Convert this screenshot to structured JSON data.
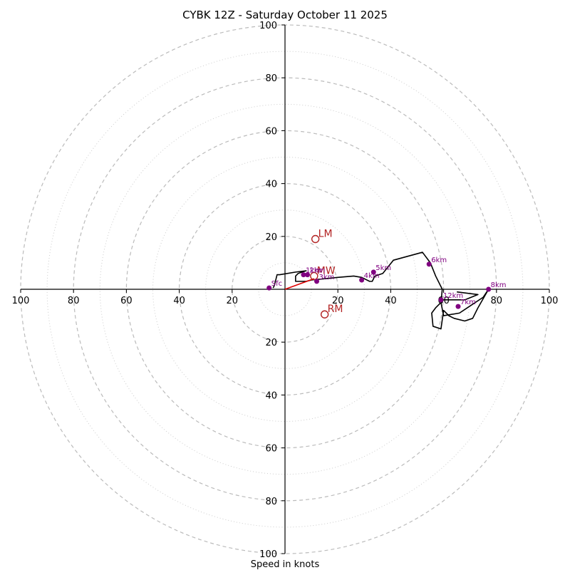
{
  "chart_data": {
    "type": "hodograph",
    "title": "CYBK 12Z - Saturday October 11 2025",
    "xlabel": "Speed in knots",
    "max_speed": 100,
    "ring_major": [
      20,
      40,
      60,
      80,
      100
    ],
    "ring_minor": [
      10,
      30,
      50,
      70,
      90
    ],
    "tick_labels": [
      "20",
      "40",
      "60",
      "80",
      "100"
    ],
    "trace_u": [
      -4.5,
      -4,
      -3,
      -2,
      4,
      8,
      5,
      4,
      4,
      8,
      10,
      15,
      20,
      26,
      29,
      32,
      33,
      34,
      37,
      41,
      52,
      55,
      57,
      59.5,
      59,
      60,
      66,
      69,
      75,
      77,
      73,
      71,
      68,
      64,
      62,
      60,
      59,
      56,
      55.5,
      57,
      59,
      60,
      63,
      68,
      73,
      65
    ],
    "trace_v": [
      0.5,
      1.5,
      5.5,
      5.5,
      6.5,
      7,
      6,
      5,
      3,
      3,
      3.5,
      4,
      4.5,
      5,
      4.5,
      3,
      3,
      5,
      6,
      11,
      14,
      10,
      5,
      0,
      -5,
      -10,
      -9,
      -7,
      -3,
      0,
      -7,
      -11,
      -12,
      -11,
      -10,
      -8,
      -15,
      -14,
      -9,
      -7,
      -5,
      -4,
      -4,
      -4,
      -2,
      -1
    ],
    "bunkers": [
      {
        "label": "LM",
        "u": 11.5,
        "v": 19
      },
      {
        "label": "RM",
        "u": 15,
        "v": -9.5
      },
      {
        "label": "MW",
        "u": 11,
        "v": 5
      }
    ],
    "shear_line": {
      "from": [
        0,
        0
      ],
      "to": [
        11,
        4
      ]
    },
    "height_markers": [
      {
        "label": "Sfc",
        "u": -6,
        "v": 0.5
      },
      {
        "label": "1km",
        "u": 7,
        "v": 5.5
      },
      {
        "label": "2km",
        "u": 8.5,
        "v": 5.5
      },
      {
        "label": "3km",
        "u": 12,
        "v": 3
      },
      {
        "label": "4km",
        "u": 29,
        "v": 3.5
      },
      {
        "label": "5km",
        "u": 33.5,
        "v": 6.5
      },
      {
        "label": "6km",
        "u": 54.5,
        "v": 9.5
      },
      {
        "label": "7km",
        "u": 65.5,
        "v": -6.5
      },
      {
        "label": "8km",
        "u": 77,
        "v": 0
      },
      {
        "label": "12km",
        "u": 59,
        "v": -4
      }
    ]
  }
}
